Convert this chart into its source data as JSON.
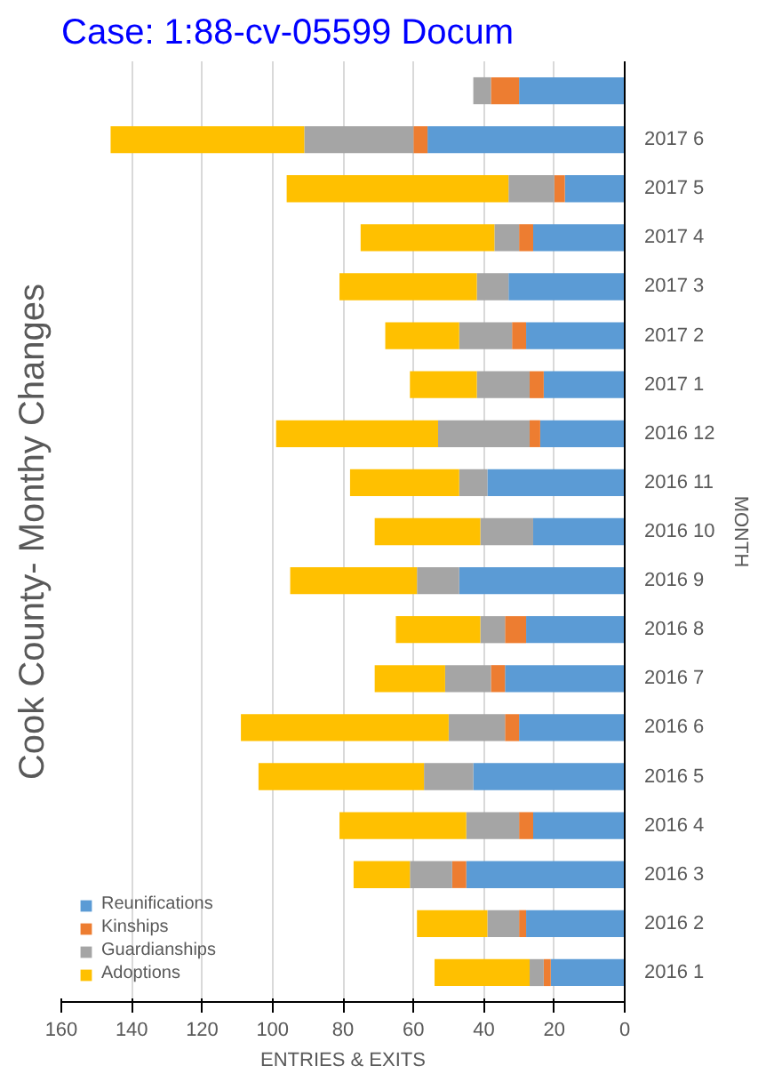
{
  "chart_data": {
    "type": "bar",
    "orientation": "horizontal",
    "stacked": true,
    "title": "Cook County- Monthy Changes",
    "xlabel": "ENTRIES & EXITS",
    "ylabel": "MONTH",
    "annotations": [
      "Case: 1:88-cv-05599 Docum"
    ],
    "categories": [
      null,
      "2017 6",
      "2017 5",
      "2017 4",
      "2017 3",
      "2017 2",
      "2017 1",
      "2016 12",
      "2016 11",
      "2016 10",
      "2016 9",
      "2016 8",
      "2016 7",
      "2016 6",
      "2016 5",
      "2016 4",
      "2016 3",
      "2016 2",
      "2016 1"
    ],
    "series": [
      {
        "name": "Reunifications",
        "color": "#5b9bd5",
        "values": [
          30,
          56,
          17,
          26,
          33,
          28,
          23,
          24,
          39,
          26,
          47,
          28,
          34,
          30,
          43,
          26,
          45,
          28,
          21
        ]
      },
      {
        "name": "Kinships",
        "color": "#ed7d31",
        "values": [
          8,
          4,
          3,
          4,
          0,
          4,
          4,
          3,
          0,
          0,
          0,
          6,
          4,
          4,
          0,
          4,
          4,
          2,
          2
        ]
      },
      {
        "name": "Guardianships",
        "color": "#a5a5a5",
        "values": [
          5,
          31,
          13,
          7,
          9,
          15,
          15,
          26,
          8,
          15,
          12,
          7,
          13,
          16,
          14,
          15,
          12,
          9,
          4
        ]
      },
      {
        "name": "Adoptions",
        "color": "#ffc000",
        "values": [
          null,
          55,
          63,
          38,
          39,
          21,
          19,
          46,
          31,
          30,
          36,
          24,
          20,
          59,
          47,
          36,
          16,
          20,
          27
        ]
      }
    ],
    "xlim": [
      160,
      0
    ],
    "xticks": [
      0,
      20,
      40,
      60,
      80,
      100,
      120,
      140,
      160
    ],
    "grid": "x",
    "legend": "bottom left"
  }
}
